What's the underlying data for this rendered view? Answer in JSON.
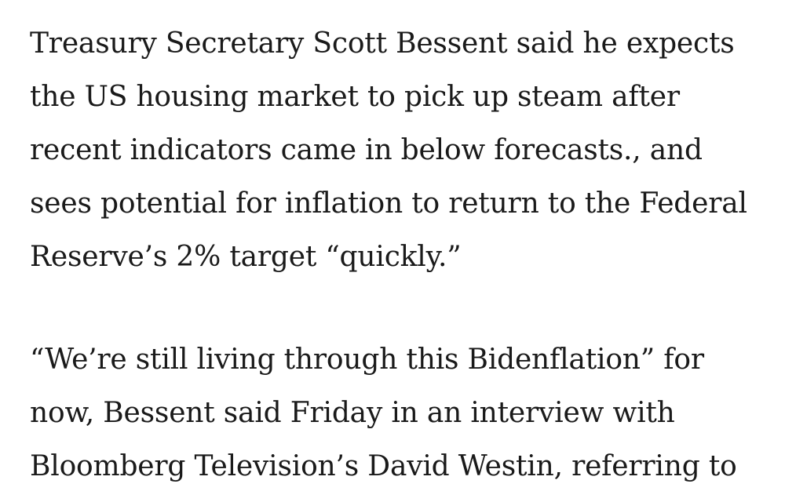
{
  "article": {
    "paragraphs": [
      {
        "lines": [
          "Treasury Secretary Scott Bessent said he expects",
          "the US housing market to pick up steam after",
          "recent indicators came in below forecasts., and",
          "sees potential for inflation to return to the Federal",
          "Reserve’s 2% target “quickly.”"
        ]
      },
      {
        "lines": [
          "“We’re still living through this Bidenflation” for",
          "now, Bessent said Friday in an interview with",
          "Bloomberg Television’s David Westin, referring to"
        ]
      }
    ]
  }
}
